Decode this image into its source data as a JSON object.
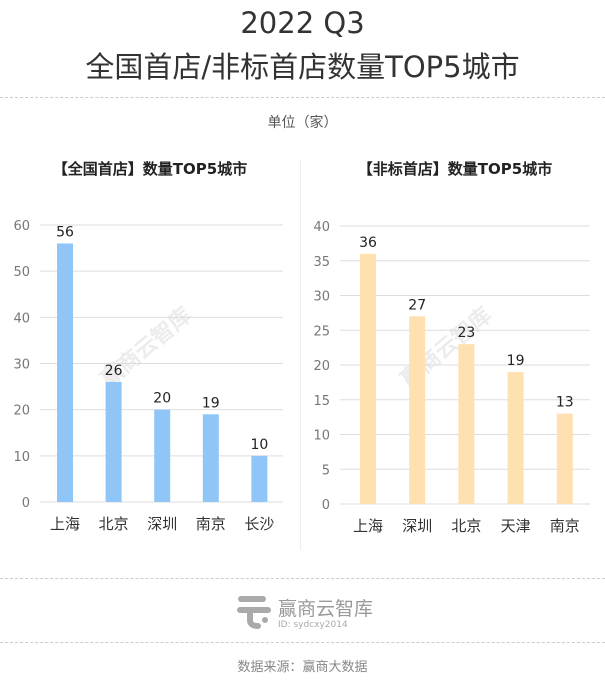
{
  "header": {
    "line1": "2022 Q3",
    "line2": "全国首店/非标首店数量TOP5城市",
    "unit": "单位（家）"
  },
  "chart_data": [
    {
      "type": "bar",
      "title": "【全国首店】数量TOP5城市",
      "categories": [
        "上海",
        "北京",
        "深圳",
        "南京",
        "长沙"
      ],
      "values": [
        56,
        26,
        20,
        19,
        10
      ],
      "ylim": [
        0,
        60
      ],
      "yticks": [
        "0",
        "10",
        "20",
        "30",
        "40",
        "50",
        "60"
      ],
      "color": "#8fc6f7",
      "grid": true
    },
    {
      "type": "bar",
      "title": "【非标首店】数量TOP5城市",
      "categories": [
        "上海",
        "深圳",
        "北京",
        "天津",
        "南京"
      ],
      "values": [
        36,
        27,
        23,
        19,
        13
      ],
      "ylim": [
        0,
        40
      ],
      "yticks": [
        "0",
        "5",
        "10",
        "15",
        "20",
        "25",
        "30",
        "35",
        "40"
      ],
      "color": "#ffe0b0",
      "grid": true
    }
  ],
  "watermark": "赢商云智库",
  "footer": {
    "logo_name": "赢商云智库",
    "logo_id": "ID: sydcxy2014",
    "source": "数据来源：赢商大数据"
  }
}
